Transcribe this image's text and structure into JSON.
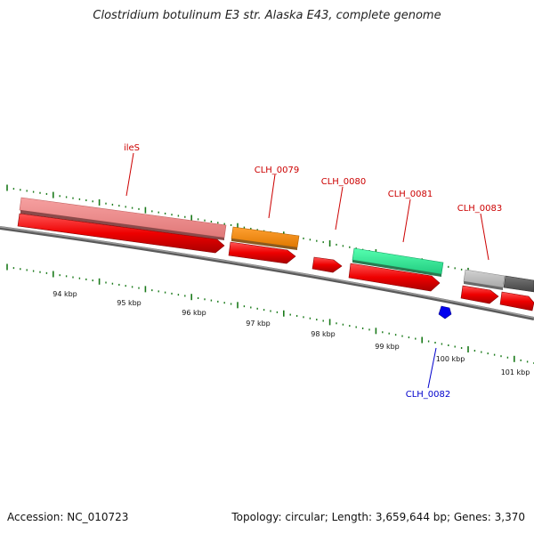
{
  "title": "Clostridium botulinum E3 str. Alaska E43, complete genome",
  "footer": {
    "accession": "Accession: NC_010723",
    "summary": "Topology: circular; Length: 3,659,644 bp; Genes: 3,370"
  },
  "colors": {
    "backbone": "#7a7a7a",
    "tick": "#1a7a1a",
    "label_forward": "#cc0000",
    "label_reverse": "#0000cc"
  },
  "scale_labels": [
    "94 kbp",
    "95 kbp",
    "96 kbp",
    "97 kbp",
    "98 kbp",
    "99 kbp",
    "100 kbp",
    "101 kbp"
  ],
  "genes": [
    {
      "name": "ileS",
      "color": "#f08a8a",
      "strand": "+"
    },
    {
      "name": "CLH_0079",
      "color": "#ff8c00",
      "strand": "+"
    },
    {
      "name": "CLH_0080",
      "color": "",
      "strand": "+"
    },
    {
      "name": "CLH_0081",
      "color": "#33ee99",
      "strand": "+"
    },
    {
      "name": "CLH_0082",
      "color": "#0000ee",
      "strand": "-"
    },
    {
      "name": "CLH_0083",
      "color": "#bbbbbb",
      "strand": "+"
    }
  ],
  "cds_color": "#ee0000"
}
